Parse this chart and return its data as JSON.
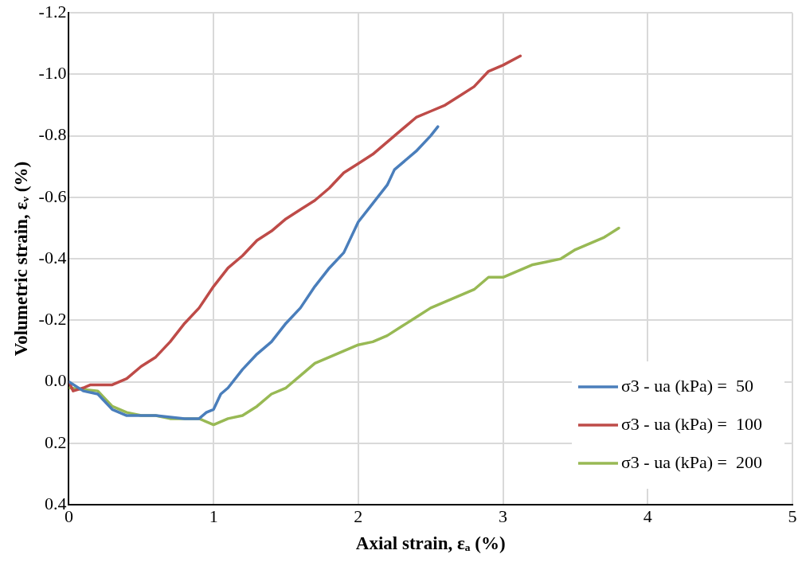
{
  "chart_data": {
    "type": "line",
    "xlabel": "Axial strain, εₐ (%)",
    "ylabel": "Volumetric strain, εᵥ (%)",
    "xlim": [
      0,
      5
    ],
    "xticks": [
      0,
      1,
      2,
      3,
      4,
      5
    ],
    "ylim": [
      0.4,
      -1.2
    ],
    "yticks": [
      -1.2,
      {
        "value": -1,
        "label": "-1.0"
      },
      -0.8,
      -0.6,
      -0.4,
      -0.2,
      {
        "value": 0,
        "label": "0.0"
      },
      0.2,
      0.4
    ],
    "grid": true,
    "legend": "bottom right",
    "marker": "none",
    "line_style": "solid",
    "series": [
      {
        "name": "σ3 - ua (kPa) =  50",
        "color": "#4a7ebb",
        "x": [
          0,
          0.1,
          0.2,
          0.3,
          0.4,
          0.6,
          0.8,
          0.9,
          0.95,
          1.0,
          1.05,
          1.1,
          1.2,
          1.3,
          1.4,
          1.5,
          1.6,
          1.7,
          1.8,
          1.9,
          2.0,
          2.1,
          2.2,
          2.25,
          2.3,
          2.4,
          2.5,
          2.55
        ],
        "values": [
          0,
          0.03,
          0.04,
          0.09,
          0.11,
          0.11,
          0.12,
          0.12,
          0.1,
          0.09,
          0.04,
          0.02,
          -0.04,
          -0.09,
          -0.13,
          -0.19,
          -0.24,
          -0.31,
          -0.37,
          -0.42,
          -0.52,
          -0.58,
          -0.64,
          -0.69,
          -0.71,
          -0.75,
          -0.8,
          -0.83
        ]
      },
      {
        "name": "σ3 - ua (kPa) =  100",
        "color": "#be4b48",
        "x": [
          0,
          0.03,
          0.1,
          0.15,
          0.3,
          0.4,
          0.5,
          0.6,
          0.7,
          0.8,
          0.9,
          1.0,
          1.1,
          1.2,
          1.3,
          1.4,
          1.5,
          1.6,
          1.7,
          1.8,
          1.9,
          2.0,
          2.1,
          2.2,
          2.3,
          2.4,
          2.5,
          2.6,
          2.7,
          2.8,
          2.9,
          3.0,
          3.12
        ],
        "values": [
          0,
          0.03,
          0.02,
          0.01,
          0.01,
          -0.01,
          -0.05,
          -0.08,
          -0.13,
          -0.19,
          -0.24,
          -0.31,
          -0.37,
          -0.41,
          -0.46,
          -0.49,
          -0.53,
          -0.56,
          -0.59,
          -0.63,
          -0.68,
          -0.71,
          -0.74,
          -0.78,
          -0.82,
          -0.86,
          -0.88,
          -0.9,
          -0.93,
          -0.96,
          -1.01,
          -1.03,
          -1.06
        ]
      },
      {
        "name": "σ3 - ua (kPa) =  200",
        "color": "#98b954",
        "x": [
          0,
          0.2,
          0.3,
          0.4,
          0.5,
          0.6,
          0.7,
          0.8,
          0.9,
          1.0,
          1.1,
          1.2,
          1.3,
          1.4,
          1.5,
          1.6,
          1.7,
          1.8,
          1.9,
          2.0,
          2.1,
          2.2,
          2.3,
          2.4,
          2.5,
          2.6,
          2.7,
          2.8,
          2.9,
          3.0,
          3.1,
          3.2,
          3.3,
          3.4,
          3.5,
          3.6,
          3.7,
          3.8
        ],
        "values": [
          0.02,
          0.03,
          0.08,
          0.1,
          0.11,
          0.11,
          0.12,
          0.12,
          0.12,
          0.14,
          0.12,
          0.11,
          0.08,
          0.04,
          0.02,
          -0.02,
          -0.06,
          -0.08,
          -0.1,
          -0.12,
          -0.13,
          -0.15,
          -0.18,
          -0.21,
          -0.24,
          -0.26,
          -0.28,
          -0.3,
          -0.34,
          -0.34,
          -0.36,
          -0.38,
          -0.39,
          -0.4,
          -0.43,
          -0.45,
          -0.47,
          -0.5
        ]
      }
    ]
  }
}
